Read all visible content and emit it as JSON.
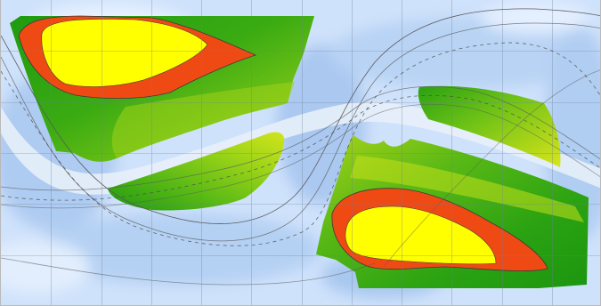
{
  "map": {
    "colors": {
      "background": "#cfe2fb",
      "light_blue": "#e6f1ff",
      "mid_blue": "#b8d3f4",
      "deep_blue": "#9fc2ee",
      "pale_band": "#d9e7f6",
      "green_dark": "#23a012",
      "green_mid": "#46b414",
      "green_light": "#86cc18",
      "yellow_green": "#c8e11a",
      "orange": "#f04a14",
      "yellow": "#ffff00",
      "grid": "#6f7f95",
      "contour": "#5a5a5a"
    }
  }
}
